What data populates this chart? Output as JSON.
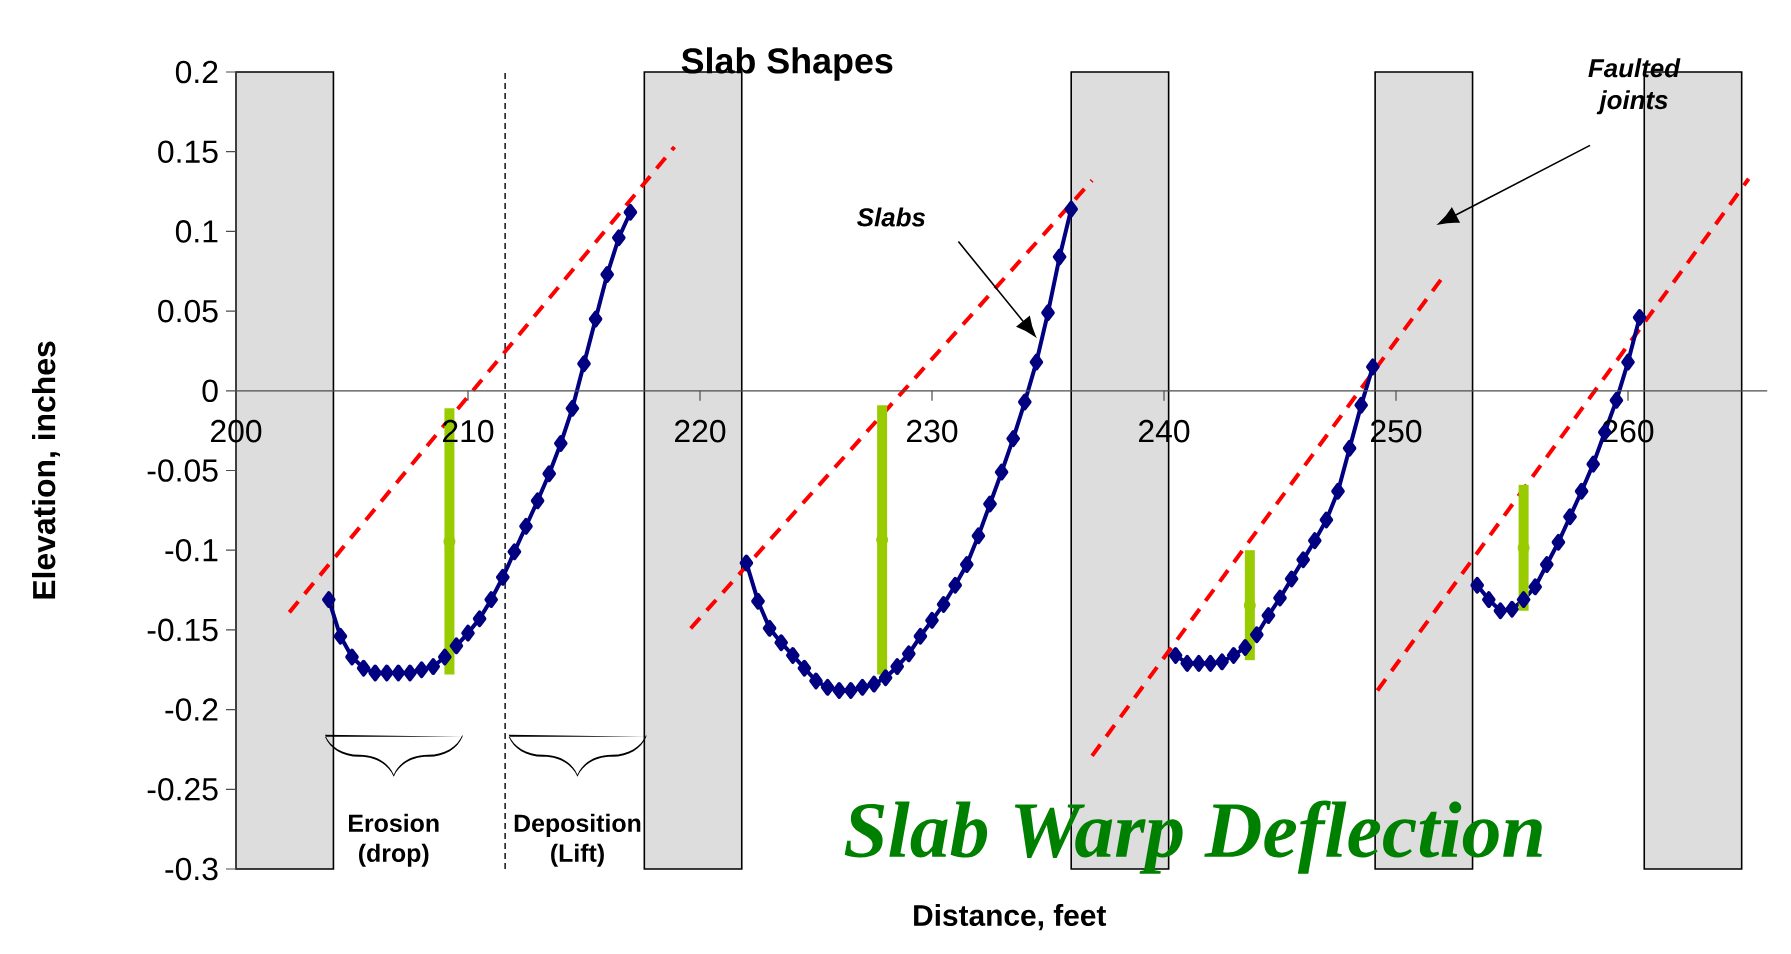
{
  "chart_data": {
    "type": "line",
    "title": "Slab Shapes",
    "xlabel": "Distance, feet",
    "ylabel": "Elevation, inches",
    "xlim": [
      200,
      266
    ],
    "xticks": [
      200,
      210,
      220,
      230,
      240,
      250,
      260
    ],
    "ylim": [
      -0.3,
      0.2
    ],
    "yticks": [
      -0.3,
      -0.25,
      -0.2,
      -0.15,
      -0.1,
      -0.05,
      0,
      0.05,
      0.1,
      0.15,
      0.2
    ],
    "bands": [
      {
        "axis": "x",
        "from": 200,
        "to": 204.2,
        "color": "#dddddd"
      },
      {
        "axis": "x",
        "from": 217.6,
        "to": 221.8,
        "color": "#dddddd"
      },
      {
        "axis": "x",
        "from": 236.0,
        "to": 240.2,
        "color": "#dddddd"
      },
      {
        "axis": "x",
        "from": 249.1,
        "to": 253.3,
        "color": "#dddddd"
      },
      {
        "axis": "x",
        "from": 260.7,
        "to": 264.9,
        "color": "#dddddd"
      }
    ],
    "ref_lines": [
      {
        "axis": "x",
        "value": 211.6,
        "color": "#000000",
        "line_style": "dashed"
      }
    ],
    "series": [
      {
        "color": "#ff0000",
        "line_style": "dashed",
        "marker": "none",
        "x": [
          202.3,
          218.9
        ],
        "values": [
          -0.139,
          0.153
        ]
      },
      {
        "color": "#ff0000",
        "line_style": "dashed",
        "marker": "none",
        "x": [
          219.6,
          236.9
        ],
        "values": [
          -0.149,
          0.132
        ]
      },
      {
        "color": "#ff0000",
        "line_style": "dashed",
        "marker": "none",
        "x": [
          236.9,
          252.0
        ],
        "values": [
          -0.229,
          0.071
        ]
      },
      {
        "color": "#ff0000",
        "line_style": "dashed",
        "marker": "none",
        "x": [
          249.2,
          265.2
        ],
        "values": [
          -0.188,
          0.133
        ]
      },
      {
        "color": "#000080",
        "line_style": "solid",
        "marker": "diamond",
        "x": [
          204,
          204.5,
          205,
          205.5,
          206,
          206.5,
          207,
          207.5,
          208,
          208.5,
          209,
          209.5,
          210,
          210.5,
          211,
          211.5,
          212,
          212.5,
          213,
          213.5,
          214,
          214.5,
          215,
          215.5,
          216,
          216.5,
          217
        ],
        "values": [
          -0.131,
          -0.154,
          -0.167,
          -0.174,
          -0.177,
          -0.177,
          -0.177,
          -0.177,
          -0.175,
          -0.173,
          -0.167,
          -0.16,
          -0.152,
          -0.143,
          -0.131,
          -0.117,
          -0.101,
          -0.085,
          -0.069,
          -0.052,
          -0.033,
          -0.011,
          0.017,
          0.045,
          0.073,
          0.096,
          0.112
        ]
      },
      {
        "color": "#000080",
        "line_style": "solid",
        "marker": "diamond",
        "x": [
          222,
          222.5,
          223,
          223.5,
          224,
          224.5,
          225,
          225.5,
          226,
          226.5,
          227,
          227.5,
          228,
          228.5,
          229,
          229.5,
          230,
          230.5,
          231,
          231.5,
          232,
          232.5,
          233,
          233.5,
          234,
          234.5,
          235,
          235.5,
          236
        ],
        "values": [
          -0.108,
          -0.132,
          -0.149,
          -0.158,
          -0.166,
          -0.174,
          -0.182,
          -0.186,
          -0.188,
          -0.188,
          -0.186,
          -0.184,
          -0.18,
          -0.173,
          -0.165,
          -0.154,
          -0.144,
          -0.134,
          -0.122,
          -0.109,
          -0.091,
          -0.071,
          -0.051,
          -0.03,
          -0.007,
          0.018,
          0.049,
          0.084,
          0.114
        ]
      },
      {
        "color": "#000080",
        "line_style": "solid",
        "marker": "diamond",
        "x": [
          240.5,
          241,
          241.5,
          242,
          242.5,
          243,
          243.5,
          244,
          244.5,
          245,
          245.5,
          246,
          246.5,
          247,
          247.5,
          248,
          248.5,
          249
        ],
        "values": [
          -0.166,
          -0.171,
          -0.171,
          -0.171,
          -0.17,
          -0.166,
          -0.161,
          -0.153,
          -0.141,
          -0.13,
          -0.118,
          -0.106,
          -0.094,
          -0.081,
          -0.063,
          -0.036,
          -0.009,
          0.015
        ]
      },
      {
        "color": "#000080",
        "line_style": "solid",
        "marker": "diamond",
        "x": [
          253.5,
          254,
          254.5,
          255,
          255.5,
          256,
          256.5,
          257,
          257.5,
          258,
          258.5,
          259,
          259.5,
          260,
          260.5
        ],
        "values": [
          -0.122,
          -0.131,
          -0.138,
          -0.137,
          -0.131,
          -0.123,
          -0.109,
          -0.095,
          -0.079,
          -0.063,
          -0.046,
          -0.026,
          -0.006,
          0.018,
          0.046
        ]
      },
      {
        "type": "scatter",
        "color": "#99cc00",
        "x": [
          209.2,
          227.85,
          243.7,
          255.5
        ],
        "values": [
          -0.0945,
          -0.0935,
          -0.1345,
          -0.0985
        ],
        "errors": [
          [
            -0.178,
            -0.011
          ],
          [
            -0.178,
            -0.009
          ],
          [
            -0.169,
            -0.1
          ],
          [
            -0.138,
            -0.059
          ]
        ]
      }
    ],
    "annotations": [
      "Slabs",
      "Faulted joints",
      "Erosion (drop)",
      "Deposition (Lift)",
      "Slab Warp Deflection"
    ]
  }
}
